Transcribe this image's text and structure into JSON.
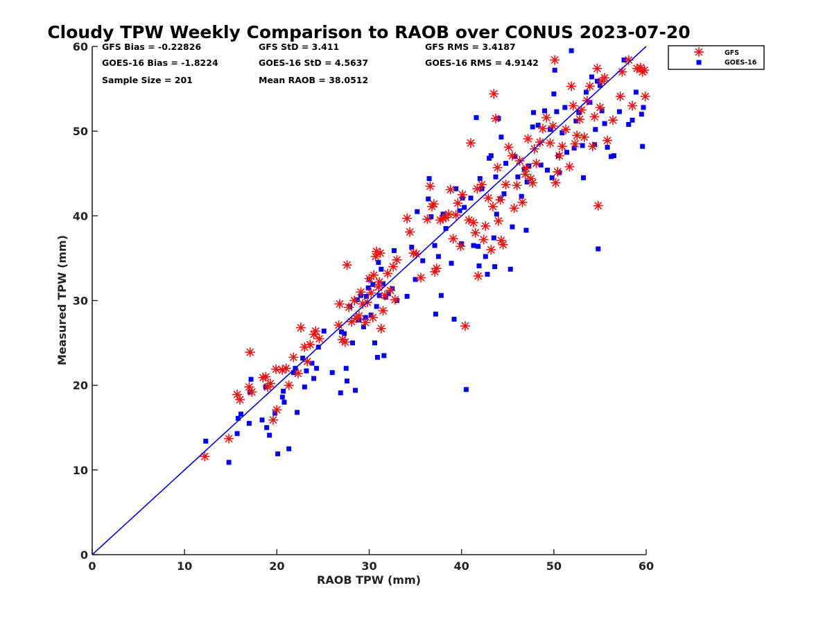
{
  "chart_data": {
    "type": "scatter",
    "title": "Cloudy TPW Weekly Comparison to RAOB over CONUS 2023-07-20",
    "xlabel": "RAOB TPW (mm)",
    "ylabel": "Measured TPW (mm)",
    "xlim": [
      0,
      60
    ],
    "ylim": [
      0,
      60
    ],
    "xticks": [
      "0",
      "10",
      "20",
      "30",
      "40",
      "50",
      "60"
    ],
    "yticks": [
      "0",
      "10",
      "20",
      "30",
      "40",
      "50",
      "60"
    ],
    "grid": false,
    "legend_position": "outside-top-right",
    "reference_line": {
      "x": [
        0,
        60
      ],
      "y": [
        0,
        60
      ],
      "color": "#0000d8"
    },
    "stats": {
      "gfs_bias": "GFS Bias = -0.22826",
      "gfs_std": "GFS StD = 3.411",
      "gfs_rms": "GFS RMS = 3.4187",
      "goes_bias": "GOES-16 Bias = -1.8224",
      "goes_std": "GOES-16 StD = 4.5637",
      "goes_rms": "GOES-16 RMS = 4.9142",
      "sample_size": "Sample Size = 201",
      "mean_raob": "Mean RAOB = 38.0512"
    },
    "series": [
      {
        "name": "GFS",
        "marker": "asterisk",
        "color": "#ee1111",
        "points": [
          [
            12.2,
            11.6
          ],
          [
            14.8,
            13.7
          ],
          [
            15.7,
            18.9
          ],
          [
            16.0,
            18.3
          ],
          [
            17.0,
            19.8
          ],
          [
            17.1,
            23.9
          ],
          [
            17.3,
            19.2
          ],
          [
            18.5,
            20.9
          ],
          [
            18.8,
            21.0
          ],
          [
            19.0,
            19.8
          ],
          [
            19.3,
            20.2
          ],
          [
            19.6,
            15.9
          ],
          [
            19.9,
            21.9
          ],
          [
            20.0,
            17.1
          ],
          [
            20.6,
            21.8
          ],
          [
            21.0,
            22.0
          ],
          [
            21.3,
            20.0
          ],
          [
            21.8,
            23.3
          ],
          [
            22.3,
            21.4
          ],
          [
            22.6,
            26.8
          ],
          [
            23.0,
            24.5
          ],
          [
            23.3,
            22.8
          ],
          [
            23.6,
            24.8
          ],
          [
            24.0,
            26.0
          ],
          [
            24.2,
            26.4
          ],
          [
            24.6,
            25.5
          ],
          [
            26.7,
            27.1
          ],
          [
            26.8,
            29.6
          ],
          [
            27.1,
            25.4
          ],
          [
            27.4,
            25.1
          ],
          [
            27.6,
            34.2
          ],
          [
            27.8,
            29.2
          ],
          [
            28.1,
            27.5
          ],
          [
            28.4,
            30.0
          ],
          [
            28.6,
            27.9
          ],
          [
            28.9,
            28.2
          ],
          [
            29.1,
            31.0
          ],
          [
            29.3,
            29.6
          ],
          [
            29.6,
            27.4
          ],
          [
            29.8,
            29.8
          ],
          [
            30.0,
            32.6
          ],
          [
            30.2,
            30.9
          ],
          [
            30.4,
            28.0
          ],
          [
            30.5,
            33.0
          ],
          [
            30.7,
            35.2
          ],
          [
            30.8,
            35.8
          ],
          [
            31.0,
            31.6
          ],
          [
            31.1,
            32.2
          ],
          [
            31.2,
            35.6
          ],
          [
            31.3,
            26.7
          ],
          [
            31.5,
            28.8
          ],
          [
            31.7,
            30.6
          ],
          [
            32.0,
            33.2
          ],
          [
            32.3,
            31.2
          ],
          [
            32.6,
            34.0
          ],
          [
            32.8,
            30.1
          ],
          [
            33.0,
            34.8
          ],
          [
            34.1,
            39.7
          ],
          [
            34.4,
            38.1
          ],
          [
            34.8,
            35.6
          ],
          [
            35.1,
            35.5
          ],
          [
            35.6,
            32.7
          ],
          [
            36.3,
            39.6
          ],
          [
            36.6,
            43.5
          ],
          [
            36.8,
            41.1
          ],
          [
            37.0,
            41.4
          ],
          [
            37.1,
            33.4
          ],
          [
            37.3,
            33.8
          ],
          [
            37.7,
            39.5
          ],
          [
            38.0,
            39.7
          ],
          [
            38.3,
            39.8
          ],
          [
            38.6,
            40.2
          ],
          [
            38.8,
            43.1
          ],
          [
            39.1,
            37.3
          ],
          [
            39.4,
            40.1
          ],
          [
            39.6,
            41.5
          ],
          [
            39.9,
            36.4
          ],
          [
            40.1,
            42.5
          ],
          [
            40.4,
            27.0
          ],
          [
            40.8,
            39.5
          ],
          [
            41.0,
            48.6
          ],
          [
            41.3,
            39.2
          ],
          [
            41.5,
            38.0
          ],
          [
            41.7,
            43.2
          ],
          [
            41.8,
            32.9
          ],
          [
            42.2,
            43.7
          ],
          [
            42.4,
            37.2
          ],
          [
            42.6,
            38.8
          ],
          [
            42.9,
            42.1
          ],
          [
            43.2,
            36.0
          ],
          [
            43.4,
            41.1
          ],
          [
            43.5,
            54.4
          ],
          [
            43.7,
            51.5
          ],
          [
            43.9,
            45.7
          ],
          [
            44.0,
            39.4
          ],
          [
            44.2,
            41.9
          ],
          [
            44.3,
            37.1
          ],
          [
            44.5,
            36.6
          ],
          [
            44.8,
            43.7
          ],
          [
            45.1,
            48.1
          ],
          [
            45.5,
            47.1
          ],
          [
            45.7,
            40.9
          ],
          [
            46.0,
            43.6
          ],
          [
            46.3,
            46.5
          ],
          [
            46.6,
            41.6
          ],
          [
            46.9,
            44.9
          ],
          [
            47.0,
            45.6
          ],
          [
            47.2,
            49.1
          ],
          [
            47.5,
            44.4
          ],
          [
            47.7,
            43.9
          ],
          [
            47.9,
            47.9
          ],
          [
            48.1,
            46.2
          ],
          [
            48.5,
            48.7
          ],
          [
            48.8,
            50.3
          ],
          [
            49.2,
            51.6
          ],
          [
            49.6,
            48.6
          ],
          [
            49.9,
            50.6
          ],
          [
            50.1,
            58.4
          ],
          [
            50.2,
            43.9
          ],
          [
            50.4,
            45.2
          ],
          [
            50.6,
            47.1
          ],
          [
            50.9,
            48.2
          ],
          [
            51.3,
            50.2
          ],
          [
            51.7,
            45.8
          ],
          [
            51.9,
            55.3
          ],
          [
            52.1,
            53.0
          ],
          [
            52.3,
            48.5
          ],
          [
            52.5,
            49.5
          ],
          [
            52.8,
            51.4
          ],
          [
            53.0,
            52.5
          ],
          [
            53.3,
            49.3
          ],
          [
            53.6,
            53.6
          ],
          [
            53.9,
            55.3
          ],
          [
            54.2,
            48.2
          ],
          [
            54.4,
            51.7
          ],
          [
            54.7,
            57.4
          ],
          [
            54.8,
            41.2
          ],
          [
            55.0,
            52.8
          ],
          [
            55.2,
            55.9
          ],
          [
            55.5,
            56.3
          ],
          [
            55.8,
            48.9
          ],
          [
            56.4,
            51.3
          ],
          [
            57.2,
            54.1
          ],
          [
            57.4,
            57.0
          ],
          [
            58.1,
            58.4
          ],
          [
            58.5,
            53.0
          ],
          [
            59.0,
            57.4
          ],
          [
            59.4,
            57.5
          ],
          [
            59.6,
            57.0
          ],
          [
            59.8,
            57.2
          ],
          [
            59.9,
            54.1
          ]
        ]
      },
      {
        "name": "GOES-16",
        "marker": "square",
        "color": "#0000ee",
        "points": [
          [
            12.3,
            13.4
          ],
          [
            14.8,
            10.9
          ],
          [
            15.8,
            16.1
          ],
          [
            15.7,
            14.3
          ],
          [
            16.1,
            16.6
          ],
          [
            17.0,
            15.5
          ],
          [
            17.1,
            19.2
          ],
          [
            17.2,
            20.7
          ],
          [
            18.4,
            15.9
          ],
          [
            18.8,
            19.8
          ],
          [
            18.9,
            15.0
          ],
          [
            19.2,
            14.1
          ],
          [
            19.8,
            16.7
          ],
          [
            20.1,
            11.9
          ],
          [
            20.6,
            18.6
          ],
          [
            20.7,
            19.3
          ],
          [
            20.8,
            18.0
          ],
          [
            21.3,
            12.5
          ],
          [
            21.8,
            21.5
          ],
          [
            22.0,
            22.0
          ],
          [
            22.2,
            16.8
          ],
          [
            22.8,
            23.2
          ],
          [
            23.0,
            19.8
          ],
          [
            23.2,
            21.7
          ],
          [
            23.8,
            22.6
          ],
          [
            24.0,
            20.8
          ],
          [
            24.3,
            22.0
          ],
          [
            24.5,
            24.5
          ],
          [
            25.1,
            26.4
          ],
          [
            26.0,
            21.5
          ],
          [
            26.9,
            19.1
          ],
          [
            27.0,
            26.3
          ],
          [
            27.3,
            26.1
          ],
          [
            27.5,
            22.0
          ],
          [
            27.6,
            20.5
          ],
          [
            27.9,
            29.3
          ],
          [
            28.2,
            25.0
          ],
          [
            28.5,
            19.4
          ],
          [
            28.7,
            30.1
          ],
          [
            28.9,
            27.7
          ],
          [
            29.1,
            30.6
          ],
          [
            29.4,
            26.9
          ],
          [
            29.6,
            28.0
          ],
          [
            29.7,
            30.5
          ],
          [
            29.9,
            31.5
          ],
          [
            30.0,
            32.5
          ],
          [
            30.2,
            28.3
          ],
          [
            30.4,
            31.9
          ],
          [
            30.6,
            25.0
          ],
          [
            30.8,
            29.3
          ],
          [
            30.9,
            23.3
          ],
          [
            31.0,
            34.5
          ],
          [
            31.1,
            30.6
          ],
          [
            31.3,
            33.7
          ],
          [
            31.5,
            32.0
          ],
          [
            31.6,
            23.5
          ],
          [
            31.8,
            30.4
          ],
          [
            32.1,
            30.8
          ],
          [
            32.5,
            31.4
          ],
          [
            32.7,
            35.9
          ],
          [
            33.0,
            30.0
          ],
          [
            34.1,
            30.5
          ],
          [
            34.6,
            36.3
          ],
          [
            35.0,
            32.5
          ],
          [
            35.2,
            40.5
          ],
          [
            35.8,
            34.7
          ],
          [
            36.4,
            42.0
          ],
          [
            36.5,
            44.4
          ],
          [
            36.7,
            39.9
          ],
          [
            37.1,
            36.5
          ],
          [
            37.2,
            28.4
          ],
          [
            37.5,
            35.2
          ],
          [
            37.8,
            30.6
          ],
          [
            38.0,
            40.2
          ],
          [
            38.3,
            38.5
          ],
          [
            38.9,
            34.4
          ],
          [
            39.2,
            27.8
          ],
          [
            39.4,
            43.2
          ],
          [
            39.8,
            40.6
          ],
          [
            40.0,
            36.7
          ],
          [
            40.1,
            42.1
          ],
          [
            40.3,
            41.0
          ],
          [
            40.5,
            19.5
          ],
          [
            41.0,
            42.1
          ],
          [
            41.3,
            36.5
          ],
          [
            41.6,
            51.6
          ],
          [
            41.8,
            36.4
          ],
          [
            41.9,
            34.1
          ],
          [
            42.0,
            44.4
          ],
          [
            42.2,
            43.2
          ],
          [
            42.6,
            35.2
          ],
          [
            42.8,
            33.1
          ],
          [
            43.0,
            46.8
          ],
          [
            43.2,
            47.1
          ],
          [
            43.5,
            37.4
          ],
          [
            43.6,
            34.0
          ],
          [
            43.7,
            44.6
          ],
          [
            43.8,
            40.2
          ],
          [
            44.0,
            51.5
          ],
          [
            44.2,
            42.0
          ],
          [
            44.3,
            49.3
          ],
          [
            44.6,
            42.6
          ],
          [
            44.8,
            46.2
          ],
          [
            45.3,
            33.7
          ],
          [
            45.5,
            38.7
          ],
          [
            45.8,
            47.0
          ],
          [
            46.1,
            44.6
          ],
          [
            46.5,
            42.3
          ],
          [
            46.8,
            45.5
          ],
          [
            47.0,
            38.3
          ],
          [
            47.1,
            44.0
          ],
          [
            47.3,
            45.9
          ],
          [
            47.7,
            50.5
          ],
          [
            47.8,
            52.2
          ],
          [
            48.3,
            50.7
          ],
          [
            48.6,
            46.0
          ],
          [
            49.0,
            52.4
          ],
          [
            49.3,
            45.4
          ],
          [
            49.6,
            50.2
          ],
          [
            49.8,
            44.5
          ],
          [
            50.0,
            54.4
          ],
          [
            50.1,
            57.2
          ],
          [
            50.3,
            52.3
          ],
          [
            50.5,
            47.1
          ],
          [
            50.6,
            45.1
          ],
          [
            50.9,
            49.8
          ],
          [
            51.2,
            52.8
          ],
          [
            51.4,
            47.5
          ],
          [
            51.9,
            59.5
          ],
          [
            52.2,
            48.0
          ],
          [
            52.4,
            51.2
          ],
          [
            52.7,
            52.2
          ],
          [
            53.1,
            48.3
          ],
          [
            53.2,
            44.5
          ],
          [
            53.5,
            54.6
          ],
          [
            53.9,
            53.4
          ],
          [
            54.1,
            56.4
          ],
          [
            54.4,
            48.4
          ],
          [
            54.5,
            50.2
          ],
          [
            54.7,
            55.9
          ],
          [
            54.8,
            36.1
          ],
          [
            55.0,
            55.4
          ],
          [
            55.2,
            52.4
          ],
          [
            55.5,
            50.9
          ],
          [
            55.8,
            48.1
          ],
          [
            56.2,
            47.0
          ],
          [
            56.5,
            47.1
          ],
          [
            57.1,
            52.3
          ],
          [
            57.6,
            58.4
          ],
          [
            58.1,
            50.8
          ],
          [
            58.5,
            51.3
          ],
          [
            58.9,
            54.6
          ],
          [
            59.5,
            52.0
          ],
          [
            59.6,
            48.2
          ],
          [
            59.7,
            52.8
          ]
        ]
      }
    ]
  }
}
